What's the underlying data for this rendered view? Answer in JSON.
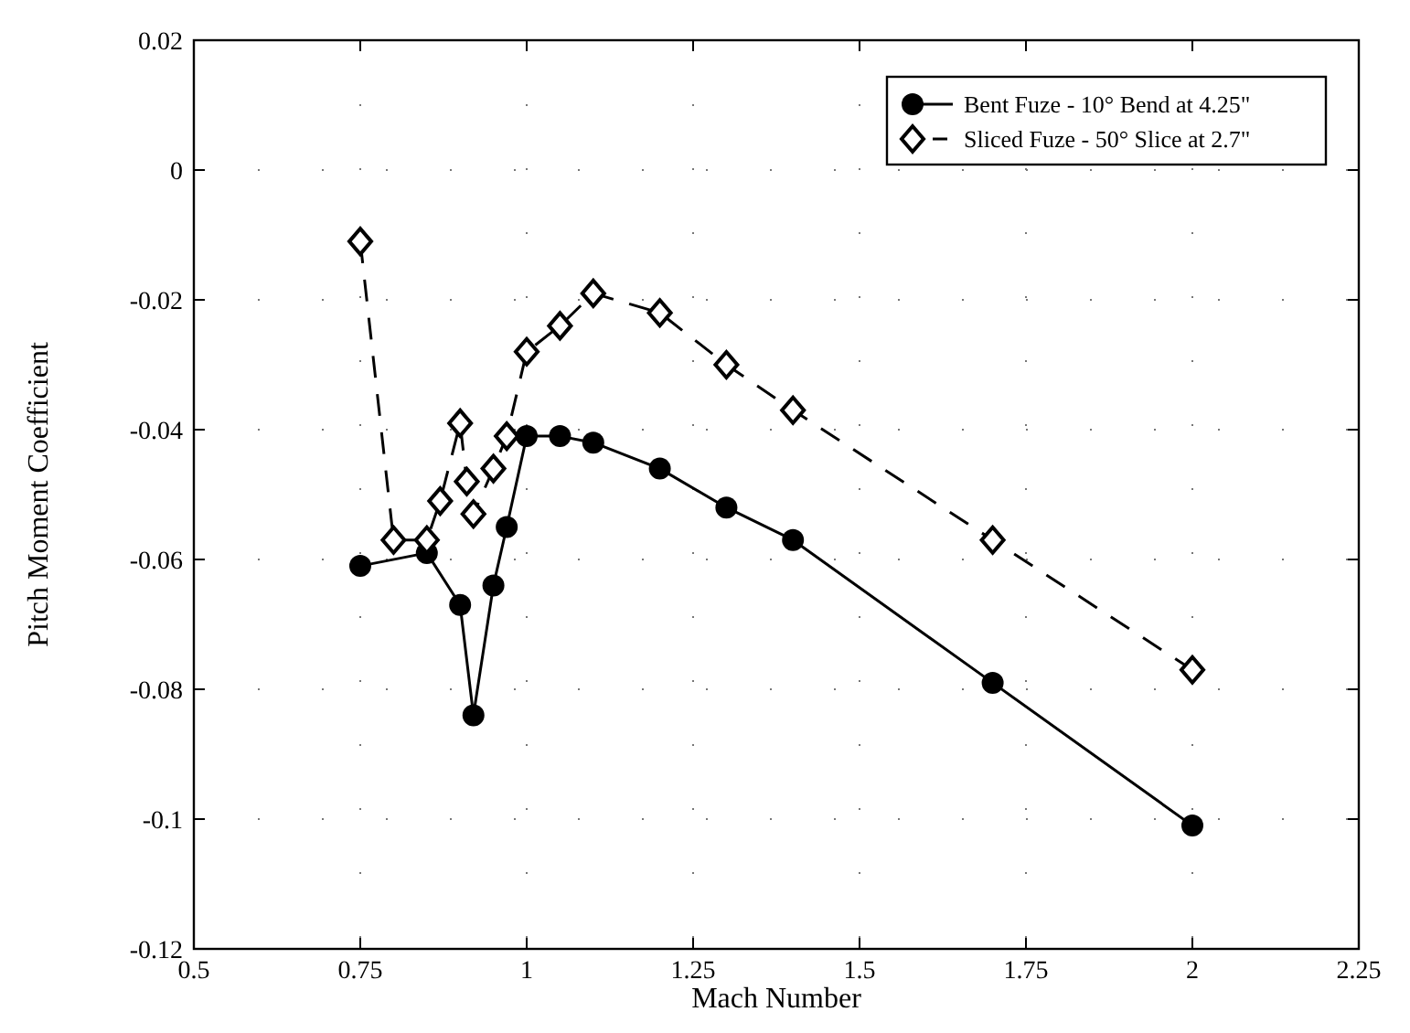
{
  "chart_data": {
    "type": "line",
    "xlabel": "Mach Number",
    "ylabel": "Pitch Moment Coefficient",
    "xlim": [
      0.5,
      2.25
    ],
    "xticks": [
      0.5,
      0.75,
      1,
      1.25,
      1.5,
      1.75,
      2,
      2.25
    ],
    "ylim": [
      -0.12,
      0.02
    ],
    "yticks": [
      -0.12,
      -0.1,
      -0.08,
      -0.06,
      -0.04,
      -0.02,
      0,
      0.02
    ],
    "grid": true,
    "legend": "top right",
    "series": [
      {
        "name": "Bent Fuze - 10° Bend at 4.25\"",
        "color": "#000000",
        "marker": "circle",
        "line_style": "solid",
        "x": [
          0.75,
          0.85,
          0.9,
          0.92,
          0.95,
          0.97,
          1.0,
          1.05,
          1.1,
          1.2,
          1.3,
          1.4,
          1.7,
          2.0
        ],
        "values": [
          -0.061,
          -0.059,
          -0.067,
          -0.084,
          -0.064,
          -0.055,
          -0.041,
          -0.041,
          -0.042,
          -0.046,
          -0.052,
          -0.057,
          -0.079,
          -0.101
        ]
      },
      {
        "name": "Sliced Fuze - 50° Slice at 2.7\"",
        "color": "#000000",
        "marker": "diamond",
        "line_style": "dashed",
        "x": [
          0.75,
          0.8,
          0.85,
          0.87,
          0.9,
          0.91,
          0.92,
          0.95,
          0.97,
          1.0,
          1.05,
          1.1,
          1.2,
          1.3,
          1.4,
          1.7,
          2.0
        ],
        "values": [
          -0.011,
          -0.057,
          -0.057,
          -0.051,
          -0.039,
          -0.048,
          -0.053,
          -0.046,
          -0.041,
          -0.028,
          -0.024,
          -0.019,
          -0.022,
          -0.03,
          -0.037,
          -0.057,
          -0.077
        ]
      }
    ]
  }
}
